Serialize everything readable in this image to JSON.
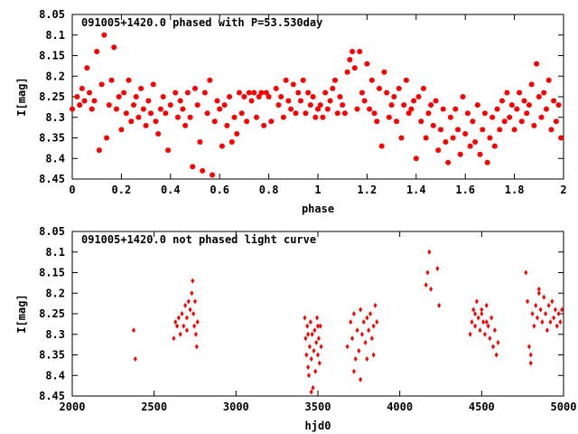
{
  "colors": {
    "points": "#ff0000",
    "axes": "#000000",
    "background": "#ffffff"
  },
  "chart_data": [
    {
      "type": "scatter",
      "title": "091005+1420.0 phased with P=53.530day",
      "xlabel": "phase",
      "ylabel": "I[mag]",
      "xlim": [
        0,
        2
      ],
      "ylim": [
        8.45,
        8.05
      ],
      "y_inverted": true,
      "xticks": [
        "0",
        "0.2",
        "0.4",
        "0.6",
        "0.8",
        "1",
        "1.2",
        "1.4",
        "1.6",
        "1.8",
        "2"
      ],
      "yticks": [
        "8.05",
        "8.1",
        "8.15",
        "8.2",
        "8.25",
        "8.3",
        "8.35",
        "8.4",
        "8.45"
      ],
      "grid": false,
      "marker": "filled-circle",
      "points": [
        [
          0.0,
          8.28
        ],
        [
          0.02,
          8.25
        ],
        [
          0.03,
          8.27
        ],
        [
          0.04,
          8.23
        ],
        [
          0.05,
          8.26
        ],
        [
          0.06,
          8.18
        ],
        [
          0.07,
          8.24
        ],
        [
          0.08,
          8.28
        ],
        [
          0.09,
          8.26
        ],
        [
          0.1,
          8.14
        ],
        [
          0.11,
          8.38
        ],
        [
          0.12,
          8.22
        ],
        [
          0.13,
          8.1
        ],
        [
          0.14,
          8.35
        ],
        [
          0.15,
          8.27
        ],
        [
          0.16,
          8.21
        ],
        [
          0.17,
          8.13
        ],
        [
          0.18,
          8.28
        ],
        [
          0.19,
          8.25
        ],
        [
          0.2,
          8.33
        ],
        [
          0.21,
          8.24
        ],
        [
          0.22,
          8.29
        ],
        [
          0.23,
          8.21
        ],
        [
          0.24,
          8.31
        ],
        [
          0.25,
          8.27
        ],
        [
          0.26,
          8.25
        ],
        [
          0.27,
          8.3
        ],
        [
          0.28,
          8.23
        ],
        [
          0.29,
          8.28
        ],
        [
          0.3,
          8.32
        ],
        [
          0.31,
          8.26
        ],
        [
          0.32,
          8.29
        ],
        [
          0.33,
          8.22
        ],
        [
          0.34,
          8.31
        ],
        [
          0.35,
          8.34
        ],
        [
          0.36,
          8.28
        ],
        [
          0.37,
          8.25
        ],
        [
          0.38,
          8.29
        ],
        [
          0.39,
          8.38
        ],
        [
          0.4,
          8.27
        ],
        [
          0.42,
          8.24
        ],
        [
          0.43,
          8.3
        ],
        [
          0.44,
          8.26
        ],
        [
          0.45,
          8.28
        ],
        [
          0.46,
          8.32
        ],
        [
          0.47,
          8.24
        ],
        [
          0.48,
          8.3
        ],
        [
          0.49,
          8.42
        ],
        [
          0.5,
          8.23
        ],
        [
          0.51,
          8.27
        ],
        [
          0.52,
          8.36
        ],
        [
          0.53,
          8.43
        ],
        [
          0.54,
          8.24
        ],
        [
          0.55,
          8.29
        ],
        [
          0.56,
          8.21
        ],
        [
          0.57,
          8.44
        ],
        [
          0.58,
          8.31
        ],
        [
          0.59,
          8.26
        ],
        [
          0.6,
          8.28
        ],
        [
          0.61,
          8.37
        ],
        [
          0.62,
          8.27
        ],
        [
          0.63,
          8.32
        ],
        [
          0.64,
          8.25
        ],
        [
          0.65,
          8.36
        ],
        [
          0.66,
          8.3
        ],
        [
          0.67,
          8.34
        ],
        [
          0.68,
          8.24
        ],
        [
          0.69,
          8.29
        ],
        [
          0.7,
          8.25
        ],
        [
          0.71,
          8.31
        ],
        [
          0.72,
          8.24
        ],
        [
          0.73,
          8.26
        ],
        [
          0.74,
          8.24
        ],
        [
          0.75,
          8.3
        ],
        [
          0.76,
          8.25
        ],
        [
          0.77,
          8.24
        ],
        [
          0.78,
          8.32
        ],
        [
          0.79,
          8.24
        ],
        [
          0.8,
          8.25
        ],
        [
          0.81,
          8.31
        ],
        [
          0.83,
          8.23
        ],
        [
          0.84,
          8.27
        ],
        [
          0.85,
          8.25
        ],
        [
          0.86,
          8.3
        ],
        [
          0.87,
          8.21
        ],
        [
          0.88,
          8.26
        ],
        [
          0.89,
          8.28
        ],
        [
          0.9,
          8.22
        ],
        [
          0.91,
          8.29
        ],
        [
          0.92,
          8.24
        ],
        [
          0.93,
          8.26
        ],
        [
          0.94,
          8.21
        ],
        [
          0.95,
          8.29
        ],
        [
          0.96,
          8.24
        ],
        [
          0.97,
          8.27
        ],
        [
          0.98,
          8.25
        ],
        [
          0.99,
          8.3
        ],
        [
          1.0,
          8.28
        ],
        [
          1.01,
          8.27
        ],
        [
          1.02,
          8.3
        ],
        [
          1.03,
          8.24
        ],
        [
          1.04,
          8.28
        ],
        [
          1.05,
          8.26
        ],
        [
          1.06,
          8.23
        ],
        [
          1.07,
          8.21
        ],
        [
          1.08,
          8.29
        ],
        [
          1.09,
          8.25
        ],
        [
          1.1,
          8.27
        ],
        [
          1.11,
          8.29
        ],
        [
          1.12,
          8.19
        ],
        [
          1.13,
          8.16
        ],
        [
          1.14,
          8.14
        ],
        [
          1.15,
          8.18
        ],
        [
          1.16,
          8.28
        ],
        [
          1.17,
          8.14
        ],
        [
          1.18,
          8.24
        ],
        [
          1.19,
          8.26
        ],
        [
          1.2,
          8.17
        ],
        [
          1.21,
          8.28
        ],
        [
          1.22,
          8.21
        ],
        [
          1.23,
          8.29
        ],
        [
          1.24,
          8.31
        ],
        [
          1.25,
          8.23
        ],
        [
          1.26,
          8.37
        ],
        [
          1.27,
          8.19
        ],
        [
          1.28,
          8.24
        ],
        [
          1.29,
          8.3
        ],
        [
          1.3,
          8.27
        ],
        [
          1.31,
          8.25
        ],
        [
          1.32,
          8.31
        ],
        [
          1.33,
          8.23
        ],
        [
          1.34,
          8.35
        ],
        [
          1.35,
          8.27
        ],
        [
          1.36,
          8.21
        ],
        [
          1.37,
          8.29
        ],
        [
          1.38,
          8.28
        ],
        [
          1.39,
          8.26
        ],
        [
          1.4,
          8.4
        ],
        [
          1.41,
          8.25
        ],
        [
          1.42,
          8.31
        ],
        [
          1.43,
          8.23
        ],
        [
          1.44,
          8.35
        ],
        [
          1.45,
          8.29
        ],
        [
          1.46,
          8.27
        ],
        [
          1.47,
          8.32
        ],
        [
          1.48,
          8.26
        ],
        [
          1.49,
          8.38
        ],
        [
          1.5,
          8.33
        ],
        [
          1.51,
          8.28
        ],
        [
          1.52,
          8.36
        ],
        [
          1.53,
          8.41
        ],
        [
          1.54,
          8.3
        ],
        [
          1.55,
          8.35
        ],
        [
          1.56,
          8.28
        ],
        [
          1.57,
          8.33
        ],
        [
          1.58,
          8.39
        ],
        [
          1.59,
          8.25
        ],
        [
          1.6,
          8.34
        ],
        [
          1.61,
          8.29
        ],
        [
          1.62,
          8.37
        ],
        [
          1.63,
          8.31
        ],
        [
          1.64,
          8.36
        ],
        [
          1.65,
          8.27
        ],
        [
          1.66,
          8.39
        ],
        [
          1.67,
          8.33
        ],
        [
          1.68,
          8.29
        ],
        [
          1.69,
          8.41
        ],
        [
          1.7,
          8.35
        ],
        [
          1.71,
          8.3
        ],
        [
          1.72,
          8.37
        ],
        [
          1.73,
          8.28
        ],
        [
          1.74,
          8.33
        ],
        [
          1.75,
          8.26
        ],
        [
          1.76,
          8.31
        ],
        [
          1.77,
          8.24
        ],
        [
          1.78,
          8.3
        ],
        [
          1.79,
          8.27
        ],
        [
          1.8,
          8.33
        ],
        [
          1.81,
          8.28
        ],
        [
          1.82,
          8.24
        ],
        [
          1.83,
          8.31
        ],
        [
          1.84,
          8.26
        ],
        [
          1.85,
          8.29
        ],
        [
          1.86,
          8.27
        ],
        [
          1.87,
          8.22
        ],
        [
          1.88,
          8.32
        ],
        [
          1.89,
          8.17
        ],
        [
          1.9,
          8.25
        ],
        [
          1.91,
          8.3
        ],
        [
          1.92,
          8.24
        ],
        [
          1.93,
          8.28
        ],
        [
          1.94,
          8.21
        ],
        [
          1.95,
          8.33
        ],
        [
          1.96,
          8.26
        ],
        [
          1.97,
          8.31
        ],
        [
          1.98,
          8.27
        ],
        [
          1.99,
          8.35
        ]
      ]
    },
    {
      "type": "scatter",
      "title": "091005+1420.0 not phased light curve",
      "xlabel": "hjd0",
      "ylabel": "I[mag]",
      "xlim": [
        2000,
        5000
      ],
      "ylim": [
        8.45,
        8.05
      ],
      "y_inverted": true,
      "xticks": [
        "2000",
        "2500",
        "3000",
        "3500",
        "4000",
        "4500",
        "5000"
      ],
      "yticks": [
        "8.05",
        "8.1",
        "8.15",
        "8.2",
        "8.25",
        "8.3",
        "8.35",
        "8.4",
        "8.45"
      ],
      "grid": false,
      "marker": "small-diamond",
      "points": [
        [
          2375,
          8.29
        ],
        [
          2385,
          8.36
        ],
        [
          2620,
          8.31
        ],
        [
          2630,
          8.27
        ],
        [
          2640,
          8.28
        ],
        [
          2650,
          8.26
        ],
        [
          2660,
          8.3
        ],
        [
          2670,
          8.25
        ],
        [
          2680,
          8.28
        ],
        [
          2690,
          8.23
        ],
        [
          2700,
          8.26
        ],
        [
          2710,
          8.22
        ],
        [
          2720,
          8.24
        ],
        [
          2730,
          8.2
        ],
        [
          2735,
          8.17
        ],
        [
          2740,
          8.25
        ],
        [
          2745,
          8.28
        ],
        [
          2750,
          8.22
        ],
        [
          2755,
          8.3
        ],
        [
          2760,
          8.33
        ],
        [
          2765,
          8.27
        ],
        [
          2700,
          8.29
        ],
        [
          3420,
          8.26
        ],
        [
          3425,
          8.31
        ],
        [
          3430,
          8.35
        ],
        [
          3435,
          8.28
        ],
        [
          3440,
          8.38
        ],
        [
          3445,
          8.4
        ],
        [
          3450,
          8.33
        ],
        [
          3455,
          8.27
        ],
        [
          3460,
          8.36
        ],
        [
          3465,
          8.3
        ],
        [
          3470,
          8.43
        ],
        [
          3475,
          8.34
        ],
        [
          3480,
          8.29
        ],
        [
          3485,
          8.39
        ],
        [
          3490,
          8.32
        ],
        [
          3495,
          8.26
        ],
        [
          3500,
          8.35
        ],
        [
          3505,
          8.31
        ],
        [
          3510,
          8.37
        ],
        [
          3515,
          8.28
        ],
        [
          3520,
          8.33
        ],
        [
          3460,
          8.44
        ],
        [
          3440,
          8.3
        ],
        [
          3500,
          8.28
        ],
        [
          3680,
          8.33
        ],
        [
          3700,
          8.27
        ],
        [
          3710,
          8.31
        ],
        [
          3720,
          8.25
        ],
        [
          3730,
          8.36
        ],
        [
          3740,
          8.29
        ],
        [
          3750,
          8.34
        ],
        [
          3760,
          8.24
        ],
        [
          3770,
          8.3
        ],
        [
          3780,
          8.27
        ],
        [
          3790,
          8.32
        ],
        [
          3800,
          8.26
        ],
        [
          3810,
          8.29
        ],
        [
          3820,
          8.25
        ],
        [
          3830,
          8.31
        ],
        [
          3840,
          8.28
        ],
        [
          3850,
          8.23
        ],
        [
          3860,
          8.27
        ],
        [
          3720,
          8.39
        ],
        [
          3760,
          8.41
        ],
        [
          3800,
          8.36
        ],
        [
          3840,
          8.35
        ],
        [
          4160,
          8.18
        ],
        [
          4170,
          8.15
        ],
        [
          4180,
          8.1
        ],
        [
          4190,
          8.19
        ],
        [
          4230,
          8.14
        ],
        [
          4240,
          8.23
        ],
        [
          4430,
          8.3
        ],
        [
          4440,
          8.27
        ],
        [
          4450,
          8.24
        ],
        [
          4460,
          8.28
        ],
        [
          4470,
          8.22
        ],
        [
          4480,
          8.26
        ],
        [
          4490,
          8.29
        ],
        [
          4500,
          8.25
        ],
        [
          4510,
          8.27
        ],
        [
          4520,
          8.3
        ],
        [
          4530,
          8.23
        ],
        [
          4540,
          8.28
        ],
        [
          4550,
          8.31
        ],
        [
          4560,
          8.26
        ],
        [
          4570,
          8.33
        ],
        [
          4580,
          8.29
        ],
        [
          4590,
          8.35
        ],
        [
          4600,
          8.32
        ],
        [
          4460,
          8.25
        ],
        [
          4500,
          8.24
        ],
        [
          4530,
          8.27
        ],
        [
          4770,
          8.15
        ],
        [
          4780,
          8.22
        ],
        [
          4790,
          8.33
        ],
        [
          4800,
          8.37
        ],
        [
          4810,
          8.25
        ],
        [
          4820,
          8.28
        ],
        [
          4830,
          8.23
        ],
        [
          4840,
          8.26
        ],
        [
          4850,
          8.2
        ],
        [
          4860,
          8.24
        ],
        [
          4870,
          8.27
        ],
        [
          4880,
          8.21
        ],
        [
          4890,
          8.25
        ],
        [
          4900,
          8.29
        ],
        [
          4910,
          8.23
        ],
        [
          4920,
          8.27
        ],
        [
          4930,
          8.22
        ],
        [
          4940,
          8.26
        ],
        [
          4950,
          8.24
        ],
        [
          4960,
          8.28
        ],
        [
          4970,
          8.25
        ],
        [
          4980,
          8.27
        ],
        [
          4990,
          8.24
        ],
        [
          4800,
          8.35
        ],
        [
          4850,
          8.19
        ]
      ]
    }
  ]
}
